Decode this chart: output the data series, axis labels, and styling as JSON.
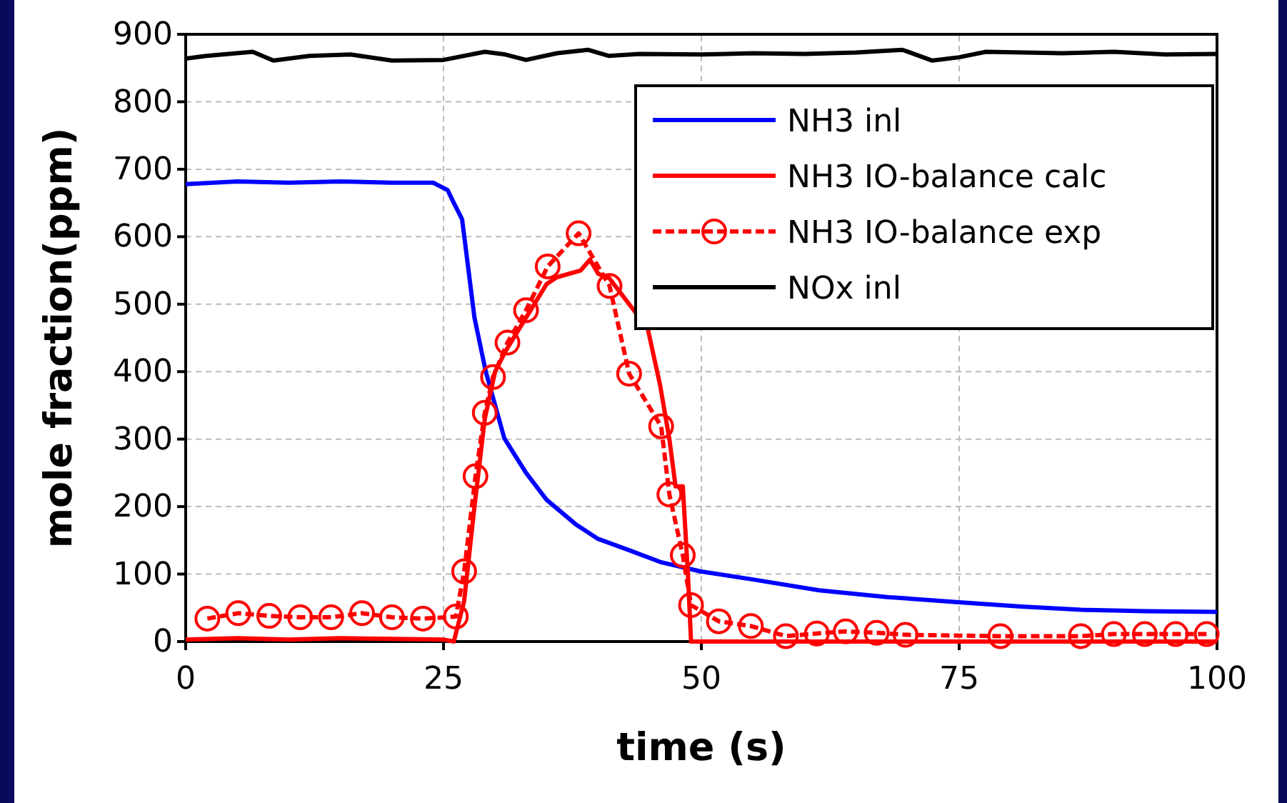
{
  "chart_data": {
    "type": "line",
    "xlabel": "time (s)",
    "ylabel": "mole fraction(ppm)",
    "xlim": [
      0,
      100
    ],
    "xticks": [
      0,
      25,
      50,
      75,
      100
    ],
    "ylim": [
      0,
      900
    ],
    "yticks": [
      0,
      100,
      200,
      300,
      400,
      500,
      600,
      700,
      800,
      900
    ],
    "grid": true,
    "legend": "top right",
    "series": [
      {
        "name": "NH3 inl",
        "color": "#0000ff",
        "line_style": "solid",
        "marker": "none",
        "x": [
          0,
          5,
          10,
          15,
          20,
          24,
          25.4,
          26,
          26.8,
          28,
          29.1,
          30.9,
          33,
          35,
          37.8,
          40,
          42.9,
          46,
          49.9,
          55,
          61.4,
          68,
          75.2,
          81,
          86.8,
          93,
          100
        ],
        "values": [
          678,
          682,
          680,
          682,
          680,
          680,
          669,
          650,
          626,
          480,
          400,
          301,
          250,
          210,
          174,
          152,
          136,
          118,
          104,
          92,
          76,
          66,
          58,
          52,
          47,
          45,
          44
        ]
      },
      {
        "name": "NH3 IO-balance calc",
        "color": "#ff0000",
        "line_style": "solid",
        "marker": "none",
        "x": [
          0,
          5,
          10,
          15,
          20,
          25,
          26,
          27,
          28,
          29,
          30,
          31,
          33,
          35,
          36,
          38.3,
          39.2,
          40,
          41,
          42,
          43,
          44.8,
          46,
          46.9,
          47.5,
          48.2,
          48.7,
          49,
          60,
          80,
          100
        ],
        "values": [
          3,
          5,
          3,
          5,
          4,
          3,
          0,
          60,
          200,
          330,
          400,
          430,
          480,
          530,
          540,
          550,
          566,
          545,
          540,
          520,
          500,
          464,
          380,
          300,
          230,
          230,
          100,
          0,
          0,
          0,
          0
        ]
      },
      {
        "name": "NH3 IO-balance exp",
        "color": "#ff0000",
        "line_style": "dashed",
        "marker": "circle",
        "x": [
          2.1,
          5.1,
          8.1,
          11.1,
          14.1,
          17.1,
          20,
          23,
          26.2,
          27,
          28.1,
          29,
          29.8,
          31.2,
          33,
          35.1,
          38.1,
          41.1,
          43,
          46.1,
          46.9,
          48.2,
          49,
          51.7,
          54.8,
          58.2,
          61.2,
          64,
          67,
          69.8,
          79,
          86.8,
          90,
          93,
          96,
          99
        ],
        "values": [
          34,
          42,
          38,
          36,
          36,
          42,
          36,
          34,
          37,
          104,
          245,
          339,
          392,
          443,
          491,
          556,
          605,
          527,
          397,
          319,
          218,
          128,
          54,
          30,
          23,
          8,
          12,
          15,
          13,
          10,
          8,
          8,
          11,
          11,
          11,
          11
        ]
      },
      {
        "name": "NOx inl",
        "color": "#000000",
        "line_style": "solid",
        "marker": "none",
        "x": [
          0,
          2,
          6.5,
          8.5,
          12,
          16,
          20,
          25,
          29,
          31,
          33,
          36,
          39,
          41,
          44,
          50,
          55,
          60,
          65,
          69.5,
          72.4,
          75,
          77.6,
          85,
          90,
          95,
          100
        ],
        "values": [
          864,
          868,
          874,
          861,
          868,
          870,
          861,
          862,
          874,
          870,
          862,
          872,
          877,
          868,
          871,
          870,
          872,
          871,
          873,
          877,
          861,
          866,
          874,
          872,
          874,
          870,
          871
        ]
      }
    ]
  }
}
